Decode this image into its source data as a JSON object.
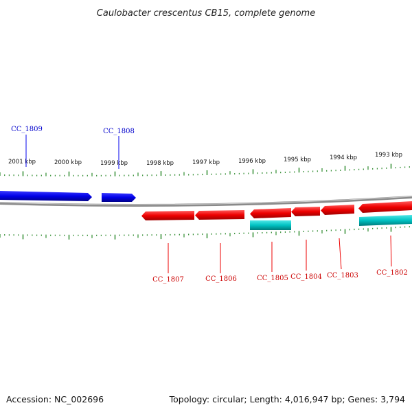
{
  "title": "Caulobacter crescentus CB15, complete genome",
  "footer": {
    "accession": "Accession: NC_002696",
    "summary": "Topology: circular; Length: 4,016,947 bp; Genes: 3,794"
  },
  "colors": {
    "forward_gene": "#0000ee",
    "reverse_gene": "#ee0000",
    "other_feature": "#00c8c8",
    "backbone": "#8a8a8a",
    "ticks": "#2e8b2e"
  },
  "scale": {
    "ticks": [
      {
        "label": "2001 kbp"
      },
      {
        "label": "2000 kbp"
      },
      {
        "label": "1999 kbp"
      },
      {
        "label": "1998 kbp"
      },
      {
        "label": "1997 kbp"
      },
      {
        "label": "1996 kbp"
      },
      {
        "label": "1995 kbp"
      },
      {
        "label": "1994 kbp"
      },
      {
        "label": "1993 kbp"
      }
    ]
  },
  "genes": [
    {
      "label": "CC_1809",
      "strand": "forward"
    },
    {
      "label": "CC_1808",
      "strand": "forward"
    },
    {
      "label": "CC_1807",
      "strand": "reverse"
    },
    {
      "label": "CC_1806",
      "strand": "reverse"
    },
    {
      "label": "CC_1805",
      "strand": "reverse"
    },
    {
      "label": "CC_1804",
      "strand": "reverse"
    },
    {
      "label": "CC_1803",
      "strand": "reverse"
    },
    {
      "label": "CC_1802",
      "strand": "reverse"
    }
  ]
}
